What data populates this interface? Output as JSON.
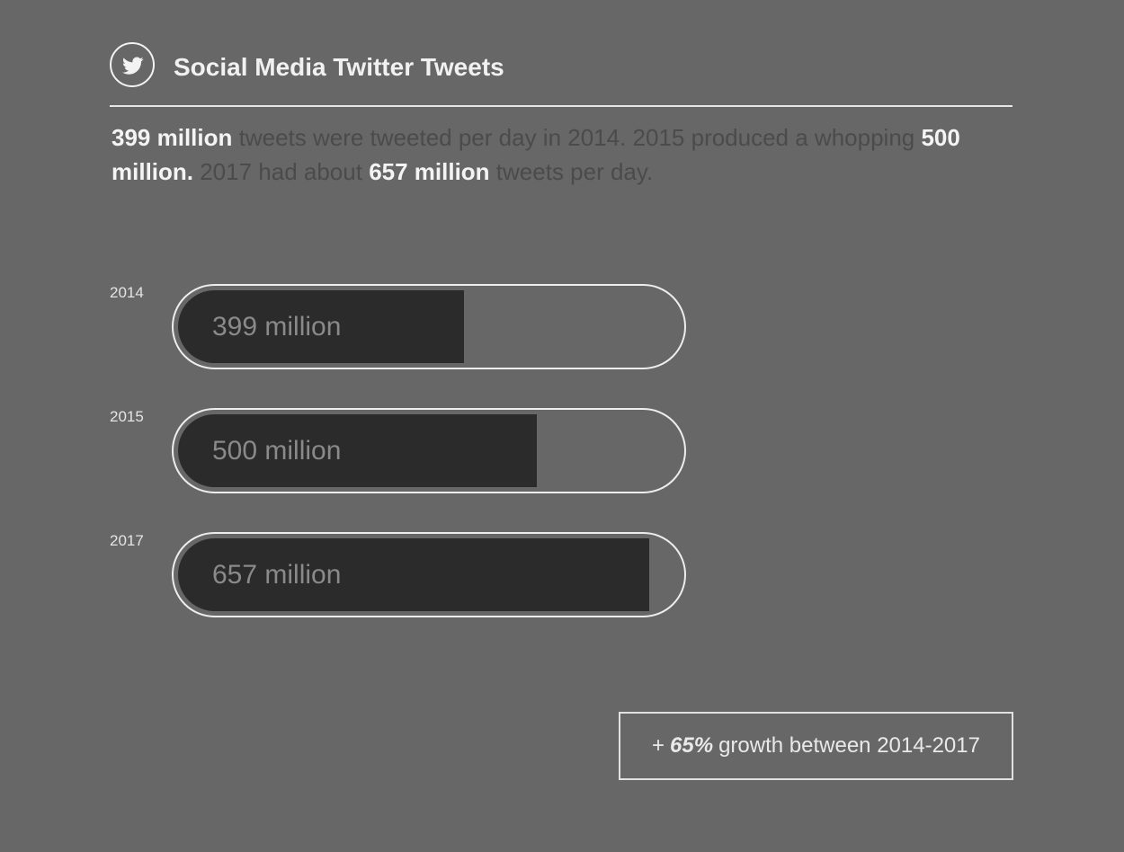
{
  "header": {
    "title": "Social Media Twitter Tweets",
    "icon": "twitter-bird-icon"
  },
  "summary": {
    "part1_bold": "399 million",
    "part2": " tweets were tweeted per day in 2014. 2015 produced a whopping ",
    "part3_bold": "500 million.",
    "part4": " 2017 had about ",
    "part5_bold": "657 million",
    "part6": " tweets per day."
  },
  "chart_data": {
    "type": "bar",
    "orientation": "horizontal",
    "categories": [
      "2014",
      "2015",
      "2017"
    ],
    "values": [
      399,
      500,
      657
    ],
    "value_labels": [
      "399 million",
      "500 million",
      "657 million"
    ],
    "unit": "million",
    "xlim": [
      0,
      700
    ],
    "title": "",
    "xlabel": "",
    "ylabel": "",
    "grid": false,
    "legend": "none"
  },
  "growth": {
    "prefix": "+",
    "percent": "65%",
    "suffix": "growth between 2014-2017"
  },
  "colors": {
    "background": "#676767",
    "bar_fill": "#2b2b2b",
    "outline": "#ededed",
    "bold_text": "#f4f4f4",
    "muted_text": "#4b4b4b"
  }
}
